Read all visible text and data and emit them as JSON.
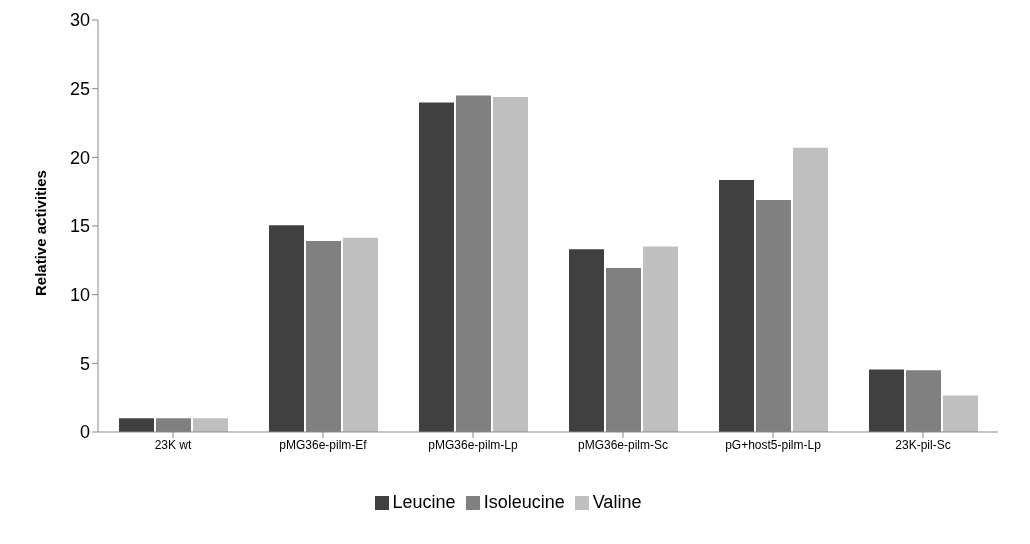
{
  "chart_data": {
    "type": "bar",
    "ylabel": "Relative activities",
    "categories": [
      "23K wt",
      "pMG36e-pilm-Ef",
      "pMG36e-pilm-Lp",
      "pMG36e-pilm-Sc",
      "pG+host5-pilm-Lp",
      "23K-pil-Sc"
    ],
    "series": [
      {
        "name": "Leucine",
        "color": "#404040",
        "values": [
          1.0,
          15.05,
          24.0,
          13.3,
          18.35,
          4.55
        ]
      },
      {
        "name": "Isoleucine",
        "color": "#808080",
        "values": [
          1.0,
          13.9,
          24.5,
          11.95,
          16.9,
          4.5
        ]
      },
      {
        "name": "Valine",
        "color": "#bfbfbf",
        "values": [
          1.0,
          14.15,
          24.4,
          13.5,
          20.7,
          2.65
        ]
      }
    ],
    "ylim": [
      0,
      30
    ],
    "yticks": [
      0,
      5,
      10,
      15,
      20,
      25,
      30
    ],
    "grid": false,
    "legend": "bottom"
  }
}
